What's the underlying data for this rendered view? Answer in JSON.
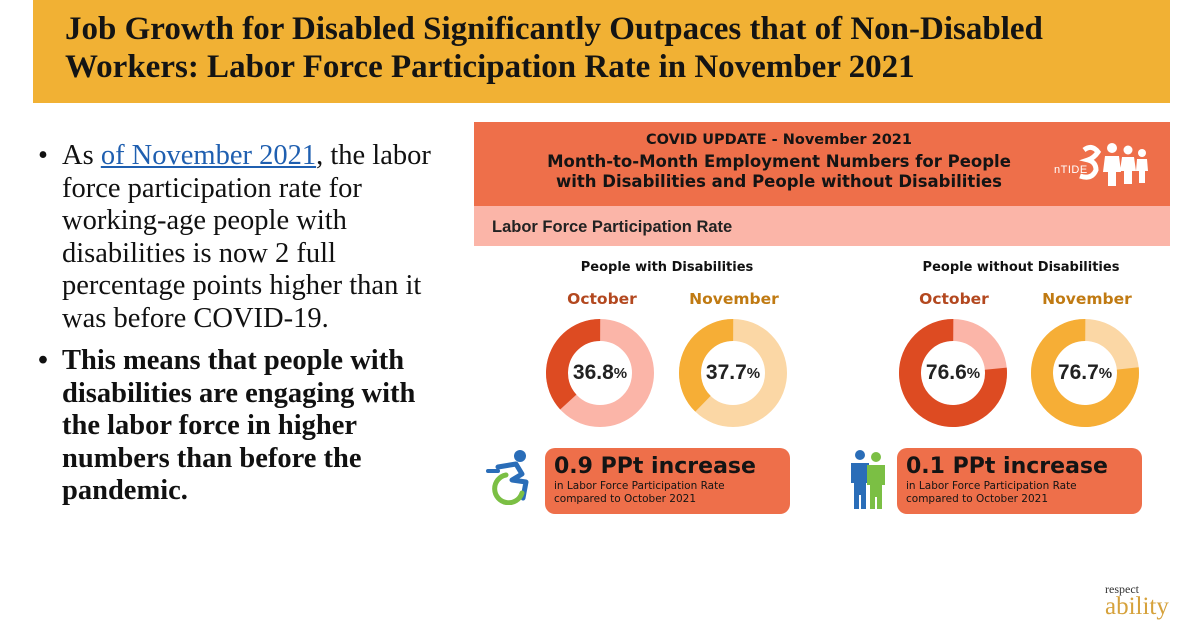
{
  "header": {
    "title_line1": "Job Growth for Disabled Significantly Outpaces that of Non-Disabled",
    "title_line2": "Workers: Labor Force Participation Rate in November 2021"
  },
  "bullets": {
    "b1_pre": "As ",
    "b1_link": "of November 2021",
    "b1_post": ", the labor force participation rate for working-age people with disabilities is now 2 full percentage points higher than it was before COVID-19.",
    "b2": "This means that people with disabilities are engaging with the labor force in higher numbers than before the pandemic.",
    "dot": "•"
  },
  "panel": {
    "head_line1": "COVID UPDATE - November 2021",
    "head_line2": "Month-to-Month Employment Numbers for People",
    "head_line3": "with Disabilities and People without Disabilities",
    "logo_text": "nTIDE",
    "subheading": "Labor Force Participation Rate"
  },
  "colors": {
    "title_bg": "#f1b134",
    "panel_head": "#ee6f4a",
    "panel_sub": "#fbb5a8",
    "oct_fill": "#dd4b22",
    "oct_track": "#fbb5a8",
    "nov_fill": "#f6ae36",
    "nov_track": "#fbd7a5",
    "oct_text": "#b3481f",
    "nov_text": "#c07a12"
  },
  "chart_data": {
    "type": "pie",
    "subtype": "donut",
    "title": "Labor Force Participation Rate",
    "groups": [
      {
        "name": "People with Disabilities",
        "series": [
          {
            "name": "October",
            "value": 36.8,
            "value_label": "36.8",
            "unit": "%"
          },
          {
            "name": "November",
            "value": 37.7,
            "value_label": "37.7",
            "unit": "%"
          }
        ],
        "change": "0.9 PPt increase",
        "change_note": "in Labor Force Participation Rate compared to October 2021"
      },
      {
        "name": "People without Disabilities",
        "series": [
          {
            "name": "October",
            "value": 76.6,
            "value_label": "76.6",
            "unit": "%"
          },
          {
            "name": "November",
            "value": 76.7,
            "value_label": "76.7",
            "unit": "%"
          }
        ],
        "change": "0.1 PPt increase",
        "change_note": "in Labor Force Participation Rate compared to October 2021"
      }
    ]
  },
  "card_note_line1": "in Labor Force Participation Rate",
  "card_note_line2": "compared to October 2021",
  "brand": {
    "top": "respect",
    "bottom": "ability"
  }
}
